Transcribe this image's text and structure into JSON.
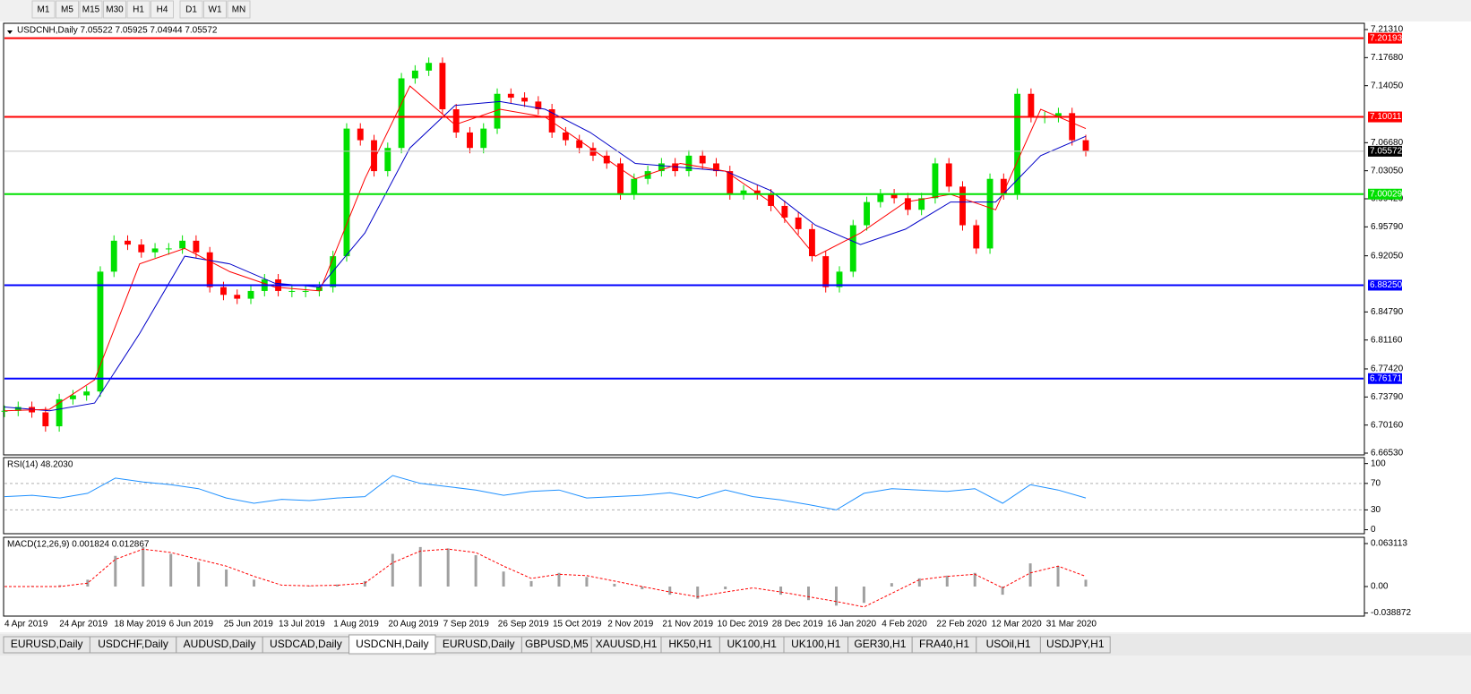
{
  "toolbar": {
    "buttons": [
      "M1",
      "M5",
      "M15",
      "M30",
      "H1",
      "H4",
      "D1",
      "W1",
      "MN"
    ]
  },
  "tabs": {
    "items": [
      "EURUSD,Daily",
      "USDCHF,Daily",
      "AUDUSD,Daily",
      "USDCAD,Daily",
      "USDCNH,Daily",
      "EURUSD,Daily",
      "GBPUSD,M5",
      "XAUUSD,H1",
      "HK50,H1",
      "UK100,H1",
      "UK100,H1",
      "GER30,H1",
      "FRA40,H1",
      "USOil,H1",
      "USDJPY,H1"
    ],
    "active": 4
  },
  "chart_data": [
    {
      "type": "candlestick",
      "title": "USDCNH,Daily 7.05522 7.05925 7.04944 7.05572",
      "x_labels": [
        "4 Apr 2019",
        "24 Apr 2019",
        "18 May 2019",
        "6 Jun 2019",
        "25 Jun 2019",
        "13 Jul 2019",
        "1 Aug 2019",
        "20 Aug 2019",
        "7 Sep 2019",
        "26 Sep 2019",
        "15 Oct 2019",
        "2 Nov 2019",
        "21 Nov 2019",
        "10 Dec 2019",
        "28 Dec 2019",
        "16 Jan 2020",
        "4 Feb 2020",
        "22 Feb 2020",
        "12 Mar 2020",
        "31 Mar 2020"
      ],
      "closes": [
        6.72,
        6.725,
        6.718,
        6.7,
        6.735,
        6.74,
        6.745,
        6.9,
        6.94,
        6.935,
        6.925,
        6.93,
        6.93,
        6.94,
        6.925,
        6.88,
        6.87,
        6.865,
        6.875,
        6.89,
        6.875,
        6.875,
        6.875,
        6.88,
        6.92,
        7.085,
        7.07,
        7.03,
        7.06,
        7.15,
        7.16,
        7.17,
        7.11,
        7.08,
        7.06,
        7.085,
        7.13,
        7.125,
        7.12,
        7.11,
        7.08,
        7.07,
        7.06,
        7.05,
        7.04,
        7.0,
        7.02,
        7.03,
        7.04,
        7.03,
        7.05,
        7.04,
        7.03,
        7.0,
        7.005,
        7.0,
        6.985,
        6.97,
        6.955,
        6.92,
        6.88,
        6.9,
        6.96,
        6.99,
        7.0,
        6.995,
        6.98,
        6.995,
        7.04,
        7.01,
        6.96,
        6.93,
        7.02,
        7.0,
        7.13,
        7.1,
        7.1,
        7.105,
        7.07,
        7.056
      ],
      "up_color": "#00e000",
      "down_color": "#ff0000",
      "series": [
        {
          "color": "#0000c8",
          "values": [
            6.725,
            6.72,
            6.73,
            6.82,
            6.92,
            6.91,
            6.885,
            6.88,
            6.95,
            7.06,
            7.115,
            7.12,
            7.11,
            7.08,
            7.04,
            7.035,
            7.03,
            7.005,
            6.96,
            6.935,
            6.955,
            6.99,
            6.99,
            7.05,
            7.075
          ]
        },
        {
          "color": "#ff0000",
          "values": [
            6.72,
            6.722,
            6.76,
            6.91,
            6.93,
            6.9,
            6.88,
            6.875,
            7.02,
            7.14,
            7.09,
            7.11,
            7.1,
            7.06,
            7.02,
            7.04,
            7.03,
            6.99,
            6.92,
            6.95,
            6.99,
            7.0,
            6.98,
            7.11,
            7.085
          ]
        }
      ],
      "levels": [
        {
          "value": 7.20193,
          "color": "#ff0000"
        },
        {
          "value": 7.10011,
          "color": "#ff0000"
        },
        {
          "value": 7.05572,
          "color": "#000000"
        },
        {
          "value": 7.00029,
          "color": "#00e000"
        },
        {
          "value": 6.8825,
          "label": "6.88250",
          "color": "#0000ff"
        },
        {
          "value": 6.76171,
          "color": "#0000ff"
        }
      ],
      "ylim": [
        6.663,
        7.2212
      ],
      "yticks": [
        {
          "value": 7.2131,
          "label": "7.21310"
        },
        {
          "value": 7.1768,
          "label": "7.17680"
        },
        {
          "value": 7.1405,
          "label": "7.14050"
        },
        {
          "value": 7.0668,
          "label": "7.06680"
        },
        {
          "value": 7.0305,
          "label": "7.03050"
        },
        {
          "value": 6.9942,
          "label": "6.99420"
        },
        {
          "value": 6.9579,
          "label": "6.95790"
        },
        {
          "value": 6.9205,
          "label": "6.92050"
        },
        {
          "value": 6.8479,
          "label": "6.84790"
        },
        {
          "value": 6.8116,
          "label": "6.81160"
        },
        {
          "value": 6.7742,
          "label": "6.77420"
        },
        {
          "value": 6.7379,
          "label": "6.73790"
        },
        {
          "value": 6.7016,
          "label": "6.70160"
        },
        {
          "value": 6.6653,
          "label": "6.66530"
        }
      ]
    },
    {
      "type": "line",
      "title": "RSI(14) 48.2030",
      "color": "#1e90ff",
      "values": [
        50,
        52,
        48,
        55,
        78,
        72,
        68,
        62,
        48,
        40,
        46,
        44,
        48,
        50,
        82,
        70,
        65,
        60,
        52,
        58,
        60,
        48,
        50,
        52,
        56,
        48,
        60,
        50,
        45,
        38,
        30,
        55,
        62,
        60,
        58,
        62,
        40,
        68,
        60,
        48
      ],
      "ylim": [
        -6,
        109
      ],
      "yticks": [
        100,
        70,
        30,
        0
      ],
      "levels": [
        70,
        30
      ]
    },
    {
      "type": "macd",
      "title": "MACD(12,26,9) 0.001824 0.012867",
      "color": "#ff0000",
      "hist_color": "#a0a0a0",
      "histogram": [
        0.0,
        0.001,
        0.002,
        0.01,
        0.045,
        0.058,
        0.048,
        0.036,
        0.025,
        0.01,
        0.0,
        0.001,
        0.003,
        0.008,
        0.048,
        0.058,
        0.056,
        0.046,
        0.022,
        0.008,
        0.02,
        0.014,
        0.004,
        -0.004,
        -0.012,
        -0.018,
        -0.004,
        0.0,
        -0.012,
        -0.02,
        -0.028,
        -0.024,
        0.005,
        0.012,
        0.016,
        0.02,
        -0.012,
        0.034,
        0.03,
        0.01
      ],
      "signal": [
        0.0,
        0.0,
        0.0,
        0.005,
        0.04,
        0.055,
        0.05,
        0.04,
        0.03,
        0.015,
        0.002,
        0.001,
        0.002,
        0.005,
        0.035,
        0.052,
        0.055,
        0.05,
        0.03,
        0.012,
        0.018,
        0.016,
        0.008,
        0.0,
        -0.008,
        -0.015,
        -0.008,
        -0.002,
        -0.008,
        -0.015,
        -0.022,
        -0.03,
        -0.01,
        0.01,
        0.015,
        0.018,
        -0.002,
        0.02,
        0.03,
        0.015
      ],
      "ylim": [
        -0.0434,
        0.0723
      ],
      "yticks": [
        0.063113,
        {
          "value": 0,
          "label": "0.00"
        },
        -0.038872
      ]
    }
  ]
}
